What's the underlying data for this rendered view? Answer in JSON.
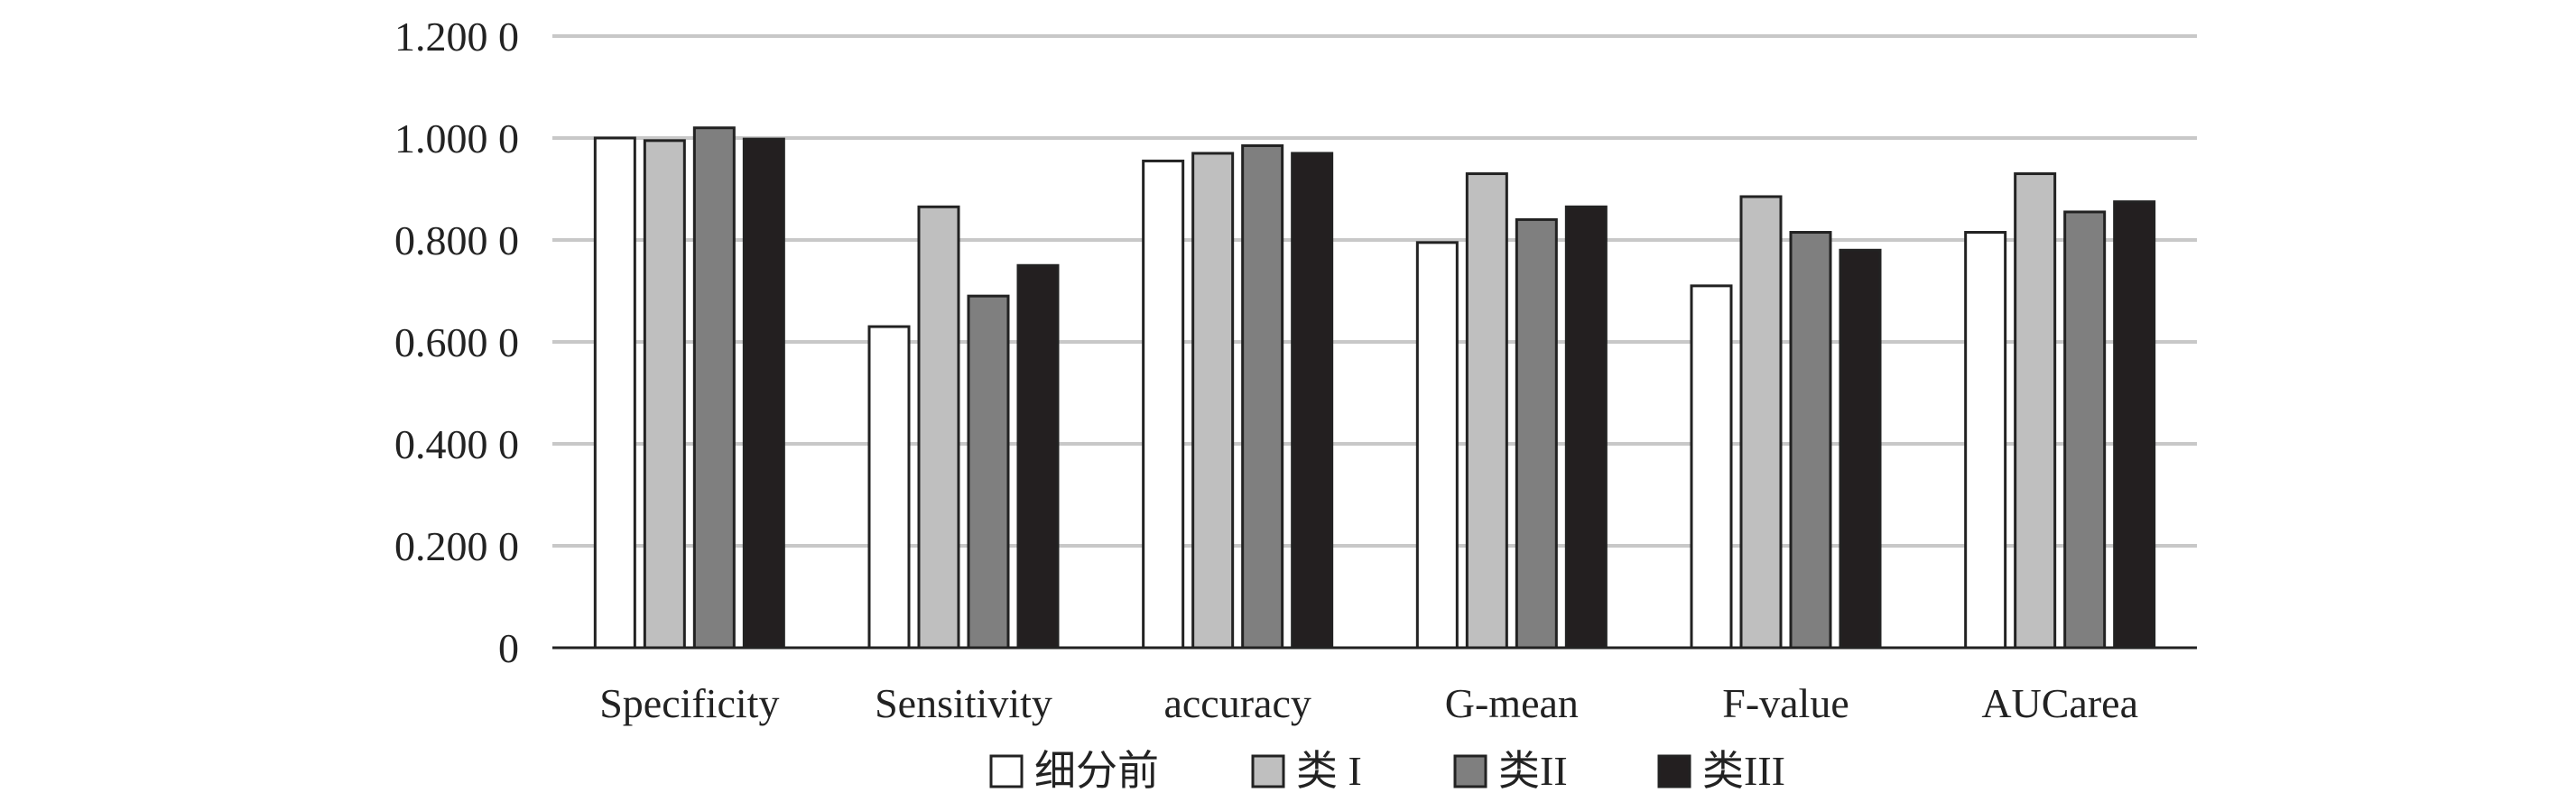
{
  "chart_data": {
    "type": "bar",
    "title": "",
    "xlabel": "",
    "ylabel": "",
    "ylim": [
      0,
      1.2
    ],
    "yticks": [
      0,
      0.2,
      0.4,
      0.6,
      0.8,
      1.0,
      1.2
    ],
    "ytick_labels": [
      "0",
      "0.200 0",
      "0.400 0",
      "0.600 0",
      "0.800 0",
      "1.000 0",
      "1.200 0"
    ],
    "categories": [
      "Specificity",
      "Sensitivity",
      "accuracy",
      "G-mean",
      "F-value",
      "AUCarea"
    ],
    "series": [
      {
        "name": "细分前",
        "color": "#ffffff",
        "values": [
          1.0,
          0.63,
          0.955,
          0.795,
          0.71,
          0.815
        ]
      },
      {
        "name": "类 I",
        "color": "#bfbfbf",
        "values": [
          0.995,
          0.865,
          0.97,
          0.93,
          0.885,
          0.93
        ]
      },
      {
        "name": "类II",
        "color": "#7f7f7f",
        "values": [
          1.02,
          0.69,
          0.985,
          0.84,
          0.815,
          0.855
        ]
      },
      {
        "name": "类III",
        "color": "#231f20",
        "values": [
          0.998,
          0.75,
          0.97,
          0.865,
          0.78,
          0.875
        ]
      }
    ],
    "grid": true,
    "legend_position": "bottom"
  }
}
